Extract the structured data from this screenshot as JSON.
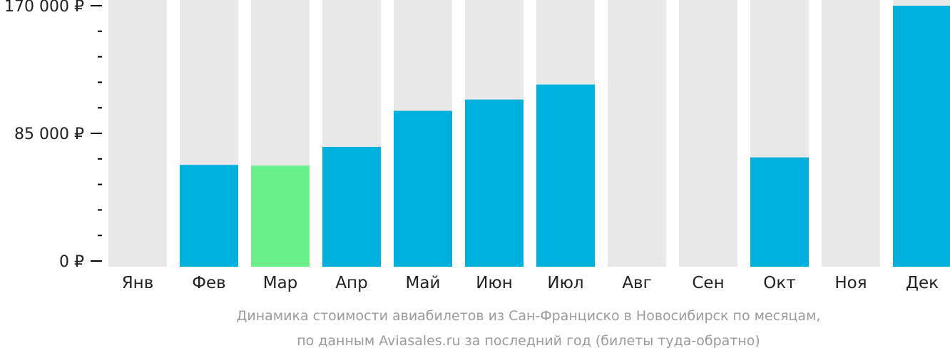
{
  "chart_data": {
    "type": "bar",
    "categories": [
      "Янв",
      "Фев",
      "Мар",
      "Апр",
      "Май",
      "Июн",
      "Июл",
      "Авг",
      "Сен",
      "Окт",
      "Ноя",
      "Дек"
    ],
    "values": [
      null,
      64000,
      63500,
      76000,
      100000,
      107500,
      117500,
      null,
      null,
      69000,
      null,
      170000
    ],
    "highlight_category": "Мар",
    "ylim": [
      0,
      170000
    ],
    "y_ticks": [
      {
        "value": 0,
        "label": "0 ₽"
      },
      {
        "value": 85000,
        "label": "85 000 ₽"
      },
      {
        "value": 170000,
        "label": "170 000 ₽"
      }
    ],
    "minor_tick_step": 17000,
    "caption_line1": "Динамика стоимости авиабилетов из Сан-Франциско в Новосибирск по месяцам,",
    "caption_line2": "по данным Aviasales.ru за последний год (билеты туда-обратно)",
    "colors": {
      "bar": "#00b0dc",
      "highlight": "#6af08a",
      "background_bar": "#e8e8e8",
      "axis": "#000000",
      "caption": "#9b9b9b"
    }
  }
}
